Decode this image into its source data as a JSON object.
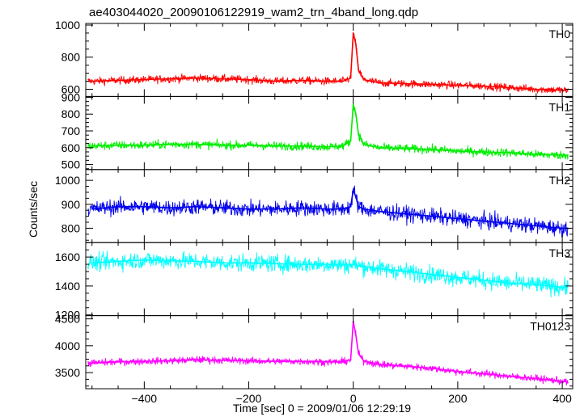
{
  "chart_data": {
    "type": "line",
    "title": "ae403044020_20090106122919_wam2_trn_4band_long.qdp",
    "xlabel": "Time [sec] 0 = 2009/01/06 12:29:19",
    "ylabel": "Counts/sec",
    "xlim": [
      -512,
      420
    ],
    "x_ticks": [
      -400,
      -200,
      0,
      200,
      400
    ],
    "x_tick_labels": [
      "−400",
      "−200",
      "0",
      "200",
      "400"
    ],
    "grid": false,
    "legend": "none",
    "panels": [
      {
        "name": "TH0",
        "color": "#ff0000",
        "ylim": [
          555,
          1010
        ],
        "y_ticks": [
          600,
          800,
          1000
        ],
        "y_tick_labels": [
          "600",
          "800",
          "1000"
        ],
        "series": {
          "x": [
            -500,
            -450,
            -400,
            -350,
            -300,
            -250,
            -200,
            -150,
            -100,
            -50,
            -20,
            -5,
            0,
            5,
            10,
            20,
            50,
            100,
            150,
            200,
            250,
            300,
            350,
            400,
            410
          ],
          "values": [
            650,
            655,
            660,
            665,
            670,
            665,
            660,
            650,
            655,
            650,
            650,
            670,
            950,
            880,
            720,
            660,
            640,
            635,
            630,
            625,
            620,
            610,
            600,
            595,
            590
          ]
        }
      },
      {
        "name": "TH1",
        "color": "#00ee00",
        "ylim": [
          470,
          905
        ],
        "y_ticks": [
          500,
          600,
          700,
          800,
          900
        ],
        "y_tick_labels": [
          "500",
          "600",
          "700",
          "800",
          "900"
        ],
        "series": {
          "x": [
            -500,
            -450,
            -400,
            -350,
            -300,
            -250,
            -200,
            -150,
            -100,
            -50,
            -20,
            -5,
            0,
            5,
            10,
            20,
            50,
            100,
            150,
            200,
            250,
            300,
            350,
            400,
            410
          ],
          "values": [
            610,
            615,
            615,
            620,
            620,
            615,
            615,
            610,
            610,
            605,
            610,
            640,
            860,
            800,
            680,
            620,
            600,
            595,
            590,
            580,
            575,
            570,
            560,
            555,
            555
          ]
        }
      },
      {
        "name": "TH2",
        "color": "#0000ee",
        "ylim": [
          740,
          1045
        ],
        "y_ticks": [
          800,
          900,
          1000
        ],
        "y_tick_labels": [
          "800",
          "900",
          "1000"
        ],
        "series": {
          "x": [
            -500,
            -450,
            -400,
            -350,
            -300,
            -250,
            -200,
            -150,
            -100,
            -50,
            -20,
            -5,
            0,
            5,
            10,
            20,
            50,
            100,
            150,
            200,
            250,
            300,
            350,
            400,
            410
          ],
          "values": [
            880,
            890,
            890,
            885,
            890,
            885,
            880,
            880,
            885,
            880,
            880,
            890,
            960,
            930,
            890,
            880,
            870,
            860,
            850,
            840,
            830,
            820,
            810,
            800,
            800
          ]
        }
      },
      {
        "name": "TH3",
        "color": "#00ffff",
        "ylim": [
          1195,
          1700
        ],
        "y_ticks": [
          1200,
          1400,
          1600
        ],
        "y_tick_labels": [
          "1200",
          "1400",
          "1600"
        ],
        "series": {
          "x": [
            -500,
            -450,
            -400,
            -350,
            -300,
            -250,
            -200,
            -150,
            -100,
            -50,
            -20,
            -5,
            0,
            5,
            10,
            20,
            50,
            100,
            150,
            200,
            250,
            300,
            350,
            400,
            410
          ],
          "values": [
            1560,
            1570,
            1580,
            1575,
            1570,
            1560,
            1560,
            1555,
            1550,
            1550,
            1545,
            1545,
            1550,
            1545,
            1540,
            1535,
            1520,
            1500,
            1480,
            1460,
            1440,
            1420,
            1410,
            1390,
            1390
          ]
        }
      },
      {
        "name": "TH0123",
        "color": "#ff00ff",
        "ylim": [
          3200,
          4560
        ],
        "y_ticks": [
          3500,
          4000,
          4500
        ],
        "y_tick_labels": [
          "3500",
          "4000",
          "4500"
        ],
        "series": {
          "x": [
            -500,
            -450,
            -400,
            -350,
            -300,
            -250,
            -200,
            -150,
            -100,
            -50,
            -20,
            -5,
            0,
            5,
            10,
            20,
            50,
            100,
            150,
            200,
            250,
            300,
            350,
            400,
            410
          ],
          "values": [
            3680,
            3700,
            3710,
            3720,
            3740,
            3730,
            3720,
            3710,
            3710,
            3700,
            3700,
            3740,
            4450,
            4200,
            3850,
            3720,
            3650,
            3620,
            3580,
            3520,
            3480,
            3430,
            3390,
            3340,
            3330
          ]
        }
      }
    ]
  }
}
